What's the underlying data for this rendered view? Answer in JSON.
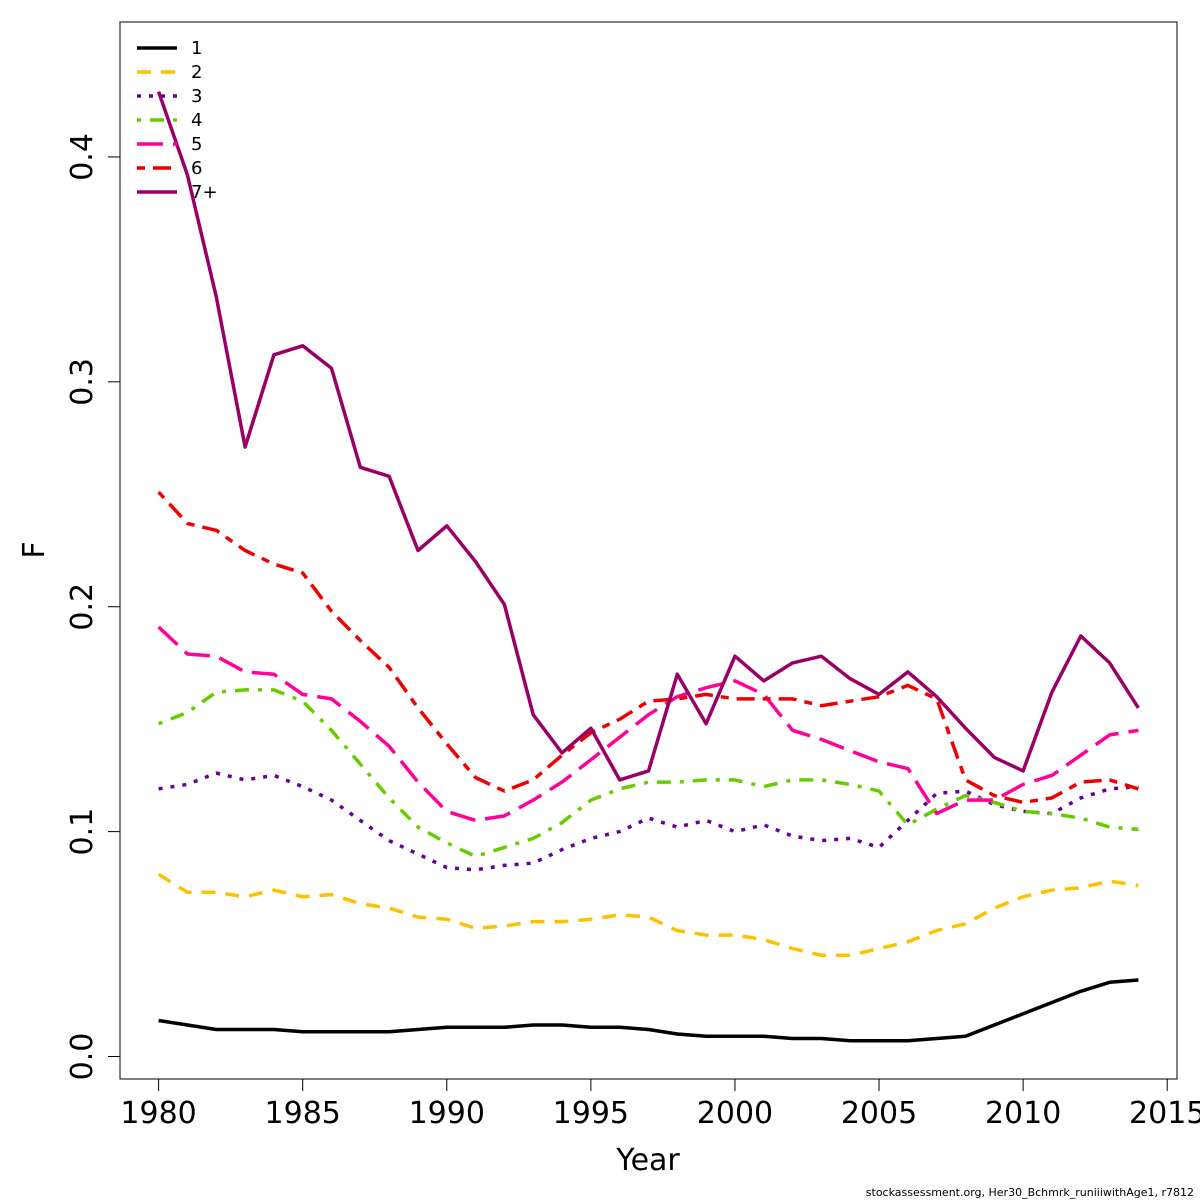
{
  "chart_data": {
    "type": "line",
    "title": "",
    "xlabel": "Year",
    "ylabel": "F",
    "xlim": [
      1978.66,
      2015.34
    ],
    "ylim": [
      -0.01,
      0.46
    ],
    "x_ticks": [
      1980,
      1985,
      1990,
      1995,
      2000,
      2005,
      2010,
      2015
    ],
    "y_ticks": [
      0.0,
      0.1,
      0.2,
      0.3,
      0.4
    ],
    "x_tick_labels": [
      "1980",
      "1985",
      "1990",
      "1995",
      "2000",
      "2005",
      "2010",
      "2015"
    ],
    "y_tick_labels": [
      "0.0",
      "0.1",
      "0.2",
      "0.3",
      "0.4"
    ],
    "grid": false,
    "legend_position": "top-left",
    "footer": "stockassessment.org, Her30_Bchmrk_runiiiwithAge1, r7812",
    "x": [
      1980,
      1981,
      1982,
      1983,
      1984,
      1985,
      1986,
      1987,
      1988,
      1989,
      1990,
      1991,
      1992,
      1993,
      1994,
      1995,
      1996,
      1997,
      1998,
      1999,
      2000,
      2001,
      2002,
      2003,
      2004,
      2005,
      2006,
      2007,
      2008,
      2009,
      2010,
      2011,
      2012,
      2013,
      2014
    ],
    "series": [
      {
        "name": "1",
        "color": "#000000",
        "dash": "solid",
        "values": [
          0.016,
          0.014,
          0.012,
          0.012,
          0.012,
          0.011,
          0.011,
          0.011,
          0.011,
          0.012,
          0.013,
          0.013,
          0.013,
          0.014,
          0.014,
          0.013,
          0.013,
          0.012,
          0.01,
          0.009,
          0.009,
          0.009,
          0.008,
          0.008,
          0.007,
          0.007,
          0.007,
          0.008,
          0.009,
          0.014,
          0.019,
          0.024,
          0.029,
          0.033,
          0.034
        ]
      },
      {
        "name": "2",
        "color": "#FFC000",
        "dash": "dashed",
        "values": [
          0.081,
          0.073,
          0.073,
          0.071,
          0.074,
          0.071,
          0.072,
          0.068,
          0.066,
          0.062,
          0.061,
          0.057,
          0.058,
          0.06,
          0.06,
          0.061,
          0.063,
          0.062,
          0.056,
          0.054,
          0.054,
          0.052,
          0.048,
          0.045,
          0.045,
          0.048,
          0.051,
          0.056,
          0.059,
          0.066,
          0.071,
          0.074,
          0.075,
          0.078,
          0.076
        ]
      },
      {
        "name": "3",
        "color": "#660099",
        "dash": "dotted",
        "values": [
          0.119,
          0.121,
          0.126,
          0.123,
          0.125,
          0.12,
          0.114,
          0.105,
          0.096,
          0.09,
          0.084,
          0.083,
          0.085,
          0.086,
          0.092,
          0.097,
          0.1,
          0.106,
          0.102,
          0.105,
          0.1,
          0.103,
          0.098,
          0.096,
          0.097,
          0.093,
          0.105,
          0.117,
          0.118,
          0.112,
          0.109,
          0.108,
          0.115,
          0.119,
          0.12
        ]
      },
      {
        "name": "4",
        "color": "#66CC00",
        "dash": "dotdash",
        "values": [
          0.148,
          0.153,
          0.162,
          0.163,
          0.163,
          0.158,
          0.145,
          0.13,
          0.115,
          0.102,
          0.095,
          0.089,
          0.093,
          0.097,
          0.104,
          0.114,
          0.119,
          0.122,
          0.122,
          0.123,
          0.123,
          0.12,
          0.123,
          0.123,
          0.121,
          0.118,
          0.103,
          0.11,
          0.116,
          0.113,
          0.109,
          0.108,
          0.106,
          0.102,
          0.101
        ]
      },
      {
        "name": "5",
        "color": "#FF0099",
        "dash": "longdash",
        "values": [
          0.191,
          0.179,
          0.178,
          0.171,
          0.17,
          0.161,
          0.159,
          0.149,
          0.138,
          0.122,
          0.109,
          0.105,
          0.107,
          0.114,
          0.122,
          0.132,
          0.142,
          0.152,
          0.16,
          0.164,
          0.167,
          0.161,
          0.145,
          0.141,
          0.136,
          0.131,
          0.128,
          0.108,
          0.114,
          0.114,
          0.121,
          0.125,
          0.134,
          0.143,
          0.145
        ]
      },
      {
        "name": "6",
        "color": "#EE0000",
        "dash": "twodash",
        "values": [
          0.251,
          0.237,
          0.234,
          0.225,
          0.219,
          0.215,
          0.198,
          0.185,
          0.173,
          0.155,
          0.139,
          0.124,
          0.118,
          0.123,
          0.134,
          0.144,
          0.15,
          0.158,
          0.159,
          0.161,
          0.159,
          0.159,
          0.159,
          0.156,
          0.158,
          0.16,
          0.165,
          0.159,
          0.123,
          0.116,
          0.113,
          0.115,
          0.122,
          0.123,
          0.119
        ]
      },
      {
        "name": "7+",
        "color": "#990066",
        "dash": "solid",
        "values": [
          0.429,
          0.392,
          0.338,
          0.271,
          0.312,
          0.316,
          0.306,
          0.262,
          0.258,
          0.225,
          0.236,
          0.22,
          0.201,
          0.152,
          0.135,
          0.146,
          0.123,
          0.127,
          0.17,
          0.148,
          0.178,
          0.167,
          0.175,
          0.178,
          0.168,
          0.161,
          0.171,
          0.16,
          0.146,
          0.133,
          0.127,
          0.162,
          0.187,
          0.175,
          0.155
        ]
      }
    ]
  }
}
